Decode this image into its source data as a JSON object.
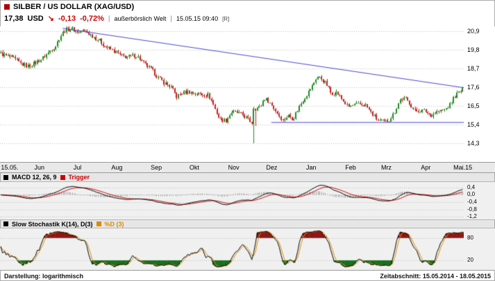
{
  "header": {
    "instrument": "SILBER / US DOLLAR (XAG/USD)",
    "price": "17,38",
    "currency": "USD",
    "trend_arrow": "↘",
    "change_abs": "-0,13",
    "change_pct": "-0,72%",
    "separator": "|",
    "quote_source": "außerbörslich Welt",
    "timestamp": "15.05.15 09:40",
    "realtime_flag": "[R]"
  },
  "footer": {
    "left": "Darstellung: logarithmisch",
    "right": "Zeitabschnitt: 15.05.2014 - 18.05.2015"
  },
  "colors": {
    "icon": "#b00000",
    "negative": "#cc0000",
    "up": "#1f8a1f",
    "down": "#c21f1f",
    "grid": "#bfbfbf",
    "trend": "#4545cf",
    "macd": "#000000",
    "trigger": "#cc0000",
    "histogram": "#9b9b9b",
    "stoch_k": "#000000",
    "stoch_d": "#d98c00",
    "overbought": "#8c1616",
    "oversold": "#17701f"
  },
  "chart_data": {
    "type": "candlestick",
    "title": "SILBER / US DOLLAR (XAG/USD)",
    "scale": "logarithmic",
    "period": "15.05.2014 - 18.05.2015",
    "price_panel": {
      "y_range": [
        13.2,
        21.2
      ],
      "y_ticks": [
        {
          "value": 20.9,
          "label": "20,9"
        },
        {
          "value": 19.8,
          "label": "19,8"
        },
        {
          "value": 18.7,
          "label": "18,7"
        },
        {
          "value": 17.6,
          "label": "17,6"
        },
        {
          "value": 16.5,
          "label": "16,5"
        },
        {
          "value": 15.4,
          "label": "15,4"
        },
        {
          "value": 14.3,
          "label": "14,3"
        }
      ],
      "x_labels": [
        {
          "pos": 0.002,
          "label": "15.05."
        },
        {
          "pos": 0.085,
          "label": "Jun"
        },
        {
          "pos": 0.167,
          "label": "Jul"
        },
        {
          "pos": 0.252,
          "label": "Aug"
        },
        {
          "pos": 0.337,
          "label": "Sep"
        },
        {
          "pos": 0.419,
          "label": "Okt"
        },
        {
          "pos": 0.504,
          "label": "Nov"
        },
        {
          "pos": 0.586,
          "label": "Dez"
        },
        {
          "pos": 0.671,
          "label": "Jan"
        },
        {
          "pos": 0.756,
          "label": "Feb"
        },
        {
          "pos": 0.833,
          "label": "Mrz"
        },
        {
          "pos": 0.918,
          "label": "Apr"
        },
        {
          "pos": 0.998,
          "label": "Mai.15"
        }
      ],
      "candle_count": 253,
      "close_anchors": [
        [
          0,
          19.6
        ],
        [
          0.012,
          19.45
        ],
        [
          0.025,
          19.35
        ],
        [
          0.047,
          18.95
        ],
        [
          0.06,
          18.85
        ],
        [
          0.075,
          19.05
        ],
        [
          0.09,
          19.3
        ],
        [
          0.105,
          19.7
        ],
        [
          0.12,
          20.1
        ],
        [
          0.129,
          20.6
        ],
        [
          0.14,
          21.0
        ],
        [
          0.155,
          21.05
        ],
        [
          0.168,
          20.85
        ],
        [
          0.18,
          20.95
        ],
        [
          0.195,
          20.7
        ],
        [
          0.214,
          20.35
        ],
        [
          0.23,
          19.95
        ],
        [
          0.248,
          19.7
        ],
        [
          0.262,
          19.45
        ],
        [
          0.278,
          19.4
        ],
        [
          0.292,
          19.5
        ],
        [
          0.299,
          19.35
        ],
        [
          0.312,
          18.95
        ],
        [
          0.326,
          18.65
        ],
        [
          0.34,
          18.2
        ],
        [
          0.355,
          17.85
        ],
        [
          0.368,
          17.65
        ],
        [
          0.381,
          17.05
        ],
        [
          0.392,
          17.25
        ],
        [
          0.405,
          17.35
        ],
        [
          0.42,
          17.25
        ],
        [
          0.435,
          17.2
        ],
        [
          0.45,
          17.15
        ],
        [
          0.46,
          16.6
        ],
        [
          0.466,
          16.2
        ],
        [
          0.475,
          15.7
        ],
        [
          0.488,
          15.65
        ],
        [
          0.5,
          16.15
        ],
        [
          0.512,
          16.1
        ],
        [
          0.525,
          15.95
        ],
        [
          0.54,
          15.6
        ],
        [
          0.548,
          15.45
        ],
        [
          0.551,
          16.35
        ],
        [
          0.562,
          16.45
        ],
        [
          0.57,
          16.95
        ],
        [
          0.58,
          16.8
        ],
        [
          0.592,
          16.35
        ],
        [
          0.602,
          15.95
        ],
        [
          0.612,
          15.65
        ],
        [
          0.622,
          15.95
        ],
        [
          0.633,
          15.75
        ],
        [
          0.645,
          16.4
        ],
        [
          0.658,
          17
        ],
        [
          0.672,
          17.55
        ],
        [
          0.685,
          18.25
        ],
        [
          0.695,
          18.1
        ],
        [
          0.705,
          17.8
        ],
        [
          0.715,
          17.25
        ],
        [
          0.728,
          17.3
        ],
        [
          0.74,
          16.85
        ],
        [
          0.752,
          16.45
        ],
        [
          0.764,
          16.55
        ],
        [
          0.778,
          16.6
        ],
        [
          0.79,
          16.55
        ],
        [
          0.802,
          16.1
        ],
        [
          0.815,
          15.7
        ],
        [
          0.828,
          15.55
        ],
        [
          0.84,
          15.65
        ],
        [
          0.852,
          16.1
        ],
        [
          0.864,
          16.85
        ],
        [
          0.875,
          16.95
        ],
        [
          0.886,
          16.65
        ],
        [
          0.896,
          16.2
        ],
        [
          0.908,
          16.25
        ],
        [
          0.92,
          16.2
        ],
        [
          0.931,
          15.95
        ],
        [
          0.942,
          16.15
        ],
        [
          0.953,
          16.2
        ],
        [
          0.962,
          16.3
        ],
        [
          0.972,
          16.55
        ],
        [
          0.982,
          17.05
        ],
        [
          0.992,
          17.3
        ],
        [
          1,
          17.45
        ]
      ],
      "special_candle": {
        "pos": 0.549,
        "open": 15.45,
        "close": 16.35,
        "high": 16.45,
        "low": 14.3
      },
      "trendlines": [
        {
          "x1": 0.135,
          "y1": 21.1,
          "x2": 1,
          "y2": 17.6
        },
        {
          "x1": 0.585,
          "y1": 15.55,
          "x2": 1,
          "y2": 15.55
        }
      ]
    },
    "macd_panel": {
      "label": "MACD 12, 26, 9",
      "trigger_label": "Trigger",
      "params": {
        "fast": 12,
        "slow": 26,
        "signal": 9
      },
      "y_range": [
        -1.35,
        0.7
      ],
      "y_ticks": [
        {
          "value": 0.4,
          "label": "0,4"
        },
        {
          "value": 0,
          "label": "0,0"
        },
        {
          "value": -0.4,
          "label": "-0,4"
        },
        {
          "value": -0.8,
          "label": "-0,8"
        },
        {
          "value": -1.2,
          "label": "-1,2"
        }
      ]
    },
    "stoch_panel": {
      "label": "Slow Stochastik K(14), D(3)",
      "d_label": "%D (3)",
      "params": {
        "k": 14,
        "slowing": 3,
        "d": 3
      },
      "y_range": [
        0,
        100
      ],
      "levels": [
        {
          "value": 80,
          "label": "80"
        },
        {
          "value": 20,
          "label": "20"
        }
      ]
    }
  }
}
